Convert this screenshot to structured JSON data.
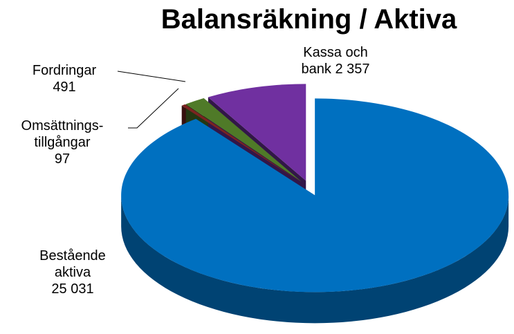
{
  "chart_data": {
    "type": "pie",
    "title": "Balansräkning / Aktiva",
    "categories": [
      "Bestående aktiva",
      "Omsättnings-tillgångar",
      "Fordringar",
      "Kassa och bank"
    ],
    "values": [
      25031,
      97,
      491,
      2357
    ],
    "value_labels": [
      "25 031",
      "97",
      "491",
      "2 357"
    ],
    "colors": [
      "#0070c0",
      "#7b2421",
      "#4f7a28",
      "#7030a0"
    ]
  }
}
